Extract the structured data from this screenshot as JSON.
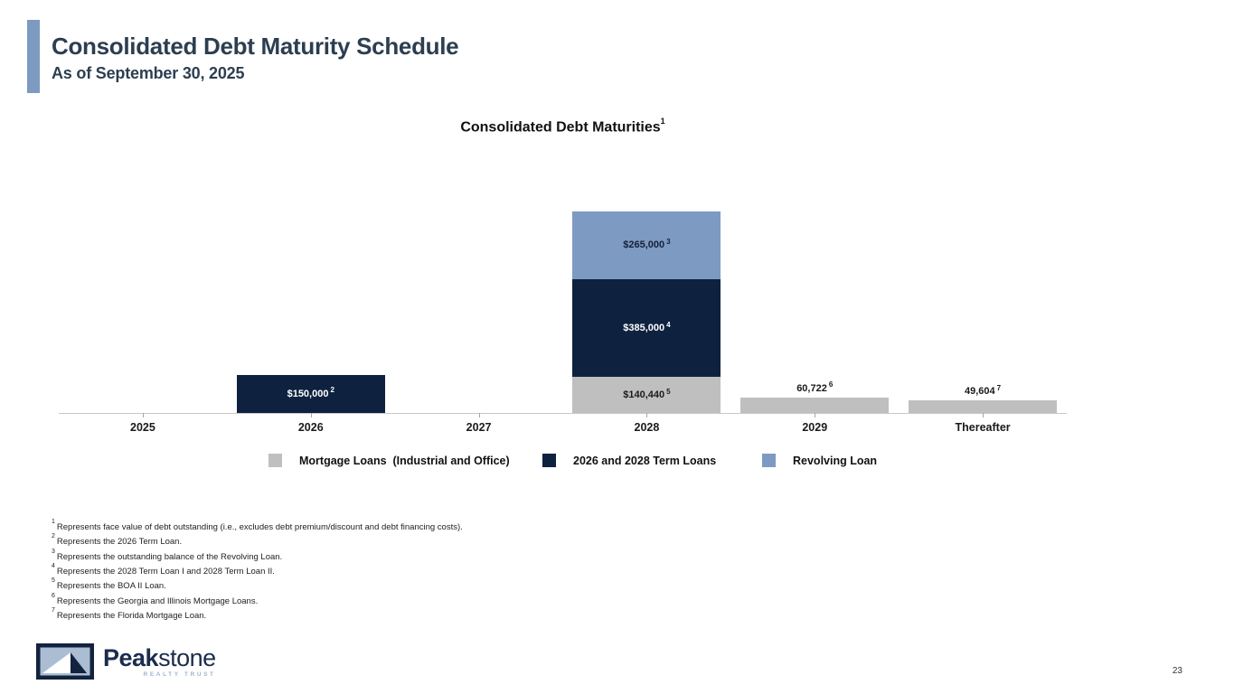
{
  "header": {
    "title": "Consolidated Debt Maturity Schedule",
    "subtitle": "As of September 30, 2025"
  },
  "colors": {
    "accent_blue": "#7d9ac0",
    "navy": "#0e2240",
    "light_blue": "#7d9ac2",
    "gray": "#bfbfbf",
    "title_text": "#2c3e50",
    "axis_line": "#c8c8c8"
  },
  "chart_data": {
    "type": "stacked-bar",
    "title": "Consolidated Debt Maturities",
    "title_superscript": "1",
    "categories": [
      "2025",
      "2026",
      "2027",
      "2028",
      "2029",
      "Thereafter"
    ],
    "legend_position": "bottom",
    "series": [
      {
        "name": "Mortgage Loans  (Industrial and Office)",
        "color": "#bfbfbf",
        "points": [
          {
            "category": "2028",
            "value": 140440,
            "label": "$140,440",
            "superscript": "5",
            "label_position": "inside",
            "label_color": "#1a1a1a"
          },
          {
            "category": "2029",
            "value": 60722,
            "label": "60,722",
            "superscript": "6",
            "label_position": "above",
            "label_color": "#1a1a1a"
          },
          {
            "category": "Thereafter",
            "value": 49604,
            "label": "49,604",
            "superscript": "7",
            "label_position": "above",
            "label_color": "#1a1a1a"
          }
        ]
      },
      {
        "name": "2026 and 2028 Term Loans",
        "color": "#0e2240",
        "points": [
          {
            "category": "2026",
            "value": 150000,
            "label": "$150,000",
            "superscript": "2",
            "label_position": "inside",
            "label_color": "#ffffff"
          },
          {
            "category": "2028",
            "value": 385000,
            "label": "$385,000",
            "superscript": "4",
            "label_position": "inside",
            "label_color": "#ffffff"
          }
        ]
      },
      {
        "name": "Revolving Loan",
        "color": "#7d9ac2",
        "points": [
          {
            "category": "2028",
            "value": 265000,
            "label": "$265,000",
            "superscript": "3",
            "label_position": "inside",
            "label_color": "#14213a"
          }
        ]
      }
    ]
  },
  "footnotes": [
    {
      "sup": "1",
      "text": "Represents face value of debt outstanding (i.e., excludes debt premium/discount and debt financing costs)."
    },
    {
      "sup": "2",
      "text": "Represents the 2026 Term Loan."
    },
    {
      "sup": "3",
      "text": "Represents the outstanding balance of the Revolving Loan."
    },
    {
      "sup": "4",
      "text": "Represents the 2028 Term Loan I and 2028 Term Loan II."
    },
    {
      "sup": "5",
      "text": "Represents the BOA II Loan."
    },
    {
      "sup": "6",
      "text": "Represents  the Georgia and Illinois Mortgage Loans."
    },
    {
      "sup": "7",
      "text": "Represents the Florida Mortgage Loan."
    }
  ],
  "footer": {
    "logo_text_bold": "Peak",
    "logo_text_light": "stone",
    "logo_tagline": "REALTY TRUST",
    "page_number": "23"
  }
}
